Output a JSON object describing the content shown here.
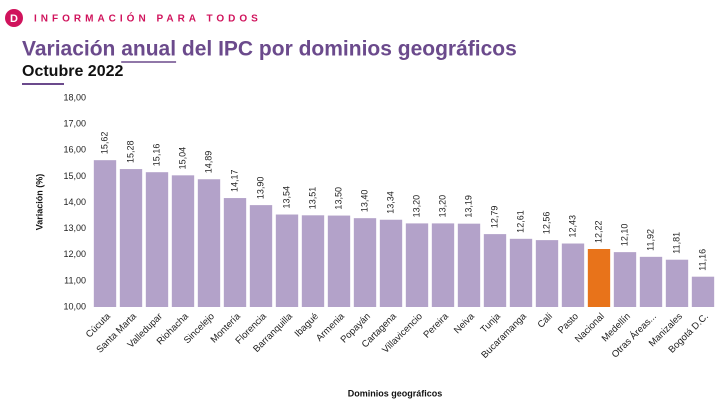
{
  "header": {
    "logo": "D",
    "tagline": "INFORMACIÓN PARA TODOS"
  },
  "chart_data": {
    "type": "bar",
    "title": "Variación anual del IPC por dominios geográficos",
    "subtitle": "Octubre 2022",
    "x_label": "Dominios geográficos",
    "y_label": "Variación (%)",
    "categories": [
      "Cúcuta",
      "Santa Marta",
      "Valledupar",
      "Riohacha",
      "Sincelejo",
      "Montería",
      "Florencia",
      "Barranquilla",
      "Ibagué",
      "Armenia",
      "Popayán",
      "Cartagena",
      "Villavicencio",
      "Pereira",
      "Neiva",
      "Tunja",
      "Bucaramanga",
      "Cali",
      "Pasto",
      "Nacional",
      "Medellín",
      "Otras Áreas...",
      "Manizales",
      "Bogotá D.C."
    ],
    "values": [
      15.62,
      15.28,
      15.16,
      15.04,
      14.89,
      14.17,
      13.9,
      13.54,
      13.51,
      13.5,
      13.4,
      13.34,
      13.2,
      13.2,
      13.19,
      12.79,
      12.61,
      12.56,
      12.43,
      12.22,
      12.1,
      11.92,
      11.81,
      11.16
    ],
    "value_labels": [
      "15,62",
      "15,28",
      "15,16",
      "15,04",
      "14,89",
      "14,17",
      "13,90",
      "13,54",
      "13,51",
      "13,50",
      "13,40",
      "13,34",
      "13,20",
      "13,20",
      "13,19",
      "12,79",
      "12,61",
      "12,56",
      "12,43",
      "12,22",
      "12,10",
      "11,92",
      "11,81",
      "11,16"
    ],
    "colors": [
      "#b3a2c9",
      "#b3a2c9",
      "#b3a2c9",
      "#b3a2c9",
      "#b3a2c9",
      "#b3a2c9",
      "#b3a2c9",
      "#b3a2c9",
      "#b3a2c9",
      "#b3a2c9",
      "#b3a2c9",
      "#b3a2c9",
      "#b3a2c9",
      "#b3a2c9",
      "#b3a2c9",
      "#b3a2c9",
      "#b3a2c9",
      "#b3a2c9",
      "#b3a2c9",
      "#e8731a",
      "#b3a2c9",
      "#b3a2c9",
      "#b3a2c9",
      "#b3a2c9"
    ],
    "ylim": [
      10,
      18
    ],
    "yticks": [
      {
        "value": 10,
        "label": "10,00"
      },
      {
        "value": 11,
        "label": "11,00"
      },
      {
        "value": 12,
        "label": "12,00"
      },
      {
        "value": 13,
        "label": "13,00"
      },
      {
        "value": 14,
        "label": "14,00"
      },
      {
        "value": 15,
        "label": "15,00"
      },
      {
        "value": 16,
        "label": "16,00"
      },
      {
        "value": 17,
        "label": "17,00"
      },
      {
        "value": 18,
        "label": "18,00"
      }
    ],
    "grid": false
  }
}
